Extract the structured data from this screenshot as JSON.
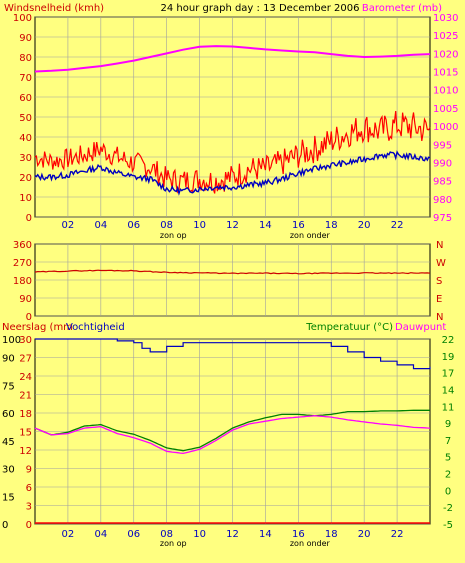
{
  "title": "24 hour graph day : 13 December 2006",
  "colors": {
    "background": "#ffff80",
    "plot": "#ffff80",
    "grid": "#a0a0a0",
    "wind": "#ff0000",
    "barometer": "#ff00ff",
    "winddir": "#cc0000",
    "humidity": "#0000c0",
    "temperature": "#008000",
    "dewpoint": "#ff00ff",
    "rain": "#ff0000",
    "axis_text": "#cc0000",
    "humidity_text": "#0000c0",
    "temp_text": "#008000"
  },
  "labels": {
    "wind_left": "Windsnelheid (kmh)",
    "baro_right": "Barometer (mb)",
    "rain_left": "Neerslag (mm",
    "hum_left": "Vochtigheid",
    "temp_right": "Temperatuur (°C)",
    "dew_right": "Dauwpunt",
    "sunrise": "zon op",
    "sunset": "zon onder"
  },
  "chart_data": [
    {
      "name": "wind-barometer",
      "type": "line",
      "x_ticks": [
        "02",
        "04",
        "06",
        "08",
        "10",
        "12",
        "14",
        "16",
        "18",
        "20",
        "22"
      ],
      "y_left_ticks": [
        "0",
        "10",
        "20",
        "30",
        "40",
        "50",
        "60",
        "70",
        "80",
        "90",
        "100"
      ],
      "y_right_ticks": [
        "975",
        "980",
        "985",
        "990",
        "995",
        "1000",
        "1005",
        "1010",
        "1015",
        "1020",
        "1025",
        "1030"
      ],
      "ylim_left": [
        0,
        100
      ],
      "ylim_right": [
        975,
        1030
      ],
      "series": [
        {
          "key": "gust",
          "hours": [
            0,
            1,
            2,
            3,
            4,
            5,
            6,
            7,
            8,
            9,
            10,
            11,
            12,
            13,
            14,
            15,
            16,
            17,
            18,
            19,
            20,
            21,
            22,
            23,
            24
          ],
          "values": [
            30,
            28,
            29,
            31,
            34,
            30,
            27,
            25,
            19,
            18,
            19,
            18,
            20,
            24,
            24,
            27,
            31,
            34,
            38,
            42,
            45,
            43,
            46,
            45,
            43
          ]
        },
        {
          "key": "wind",
          "hours": [
            0,
            1,
            2,
            3,
            4,
            5,
            6,
            7,
            8,
            9,
            10,
            11,
            12,
            13,
            14,
            15,
            16,
            17,
            18,
            19,
            20,
            21,
            22,
            23,
            24
          ],
          "values": [
            20,
            20,
            21,
            23,
            25,
            22,
            20,
            19,
            14,
            13,
            14,
            15,
            15,
            16,
            17,
            19,
            22,
            24,
            26,
            27,
            29,
            31,
            31,
            30,
            29
          ]
        },
        {
          "key": "barometer",
          "hours": [
            0,
            1,
            2,
            3,
            4,
            5,
            6,
            7,
            8,
            9,
            10,
            11,
            12,
            13,
            14,
            15,
            16,
            17,
            18,
            19,
            20,
            21,
            22,
            23,
            24
          ],
          "values": [
            1015,
            1015.2,
            1015.5,
            1016,
            1016.5,
            1017.2,
            1018,
            1019,
            1020,
            1021,
            1021.8,
            1022,
            1021.9,
            1021.5,
            1021.1,
            1020.8,
            1020.5,
            1020.3,
            1019.8,
            1019.3,
            1019,
            1019.1,
            1019.3,
            1019.6,
            1019.8
          ]
        }
      ]
    },
    {
      "name": "wind-direction",
      "type": "line",
      "x_ticks": [],
      "y_left_ticks": [
        "0",
        "90",
        "180",
        "270",
        "360"
      ],
      "y_right_ticks": [
        "N",
        "E",
        "S",
        "W",
        "N"
      ],
      "ylim": [
        0,
        360
      ],
      "series": [
        {
          "key": "direction",
          "hours": [
            0,
            2,
            4,
            6,
            8,
            10,
            12,
            14,
            16,
            18,
            20,
            22,
            24
          ],
          "values": [
            220,
            225,
            228,
            226,
            218,
            216,
            213,
            214,
            212,
            214,
            215,
            214,
            215
          ]
        }
      ]
    },
    {
      "name": "rain-humidity-temperature",
      "type": "line",
      "x_ticks": [
        "02",
        "04",
        "06",
        "08",
        "10",
        "12",
        "14",
        "16",
        "18",
        "20",
        "22"
      ],
      "y_left_ticks": [
        "0",
        "3",
        "6",
        "9",
        "12",
        "15",
        "18",
        "21",
        "24",
        "27",
        "30"
      ],
      "y_hum_ticks": [
        "0",
        "15",
        "30",
        "45",
        "60",
        "75",
        "90",
        "100"
      ],
      "y_right_ticks": [
        "-5",
        "-2",
        "0",
        "2",
        "5",
        "7",
        "9",
        "11",
        "14",
        "17",
        "19",
        "22"
      ],
      "ylim_left": [
        0,
        30
      ],
      "ylim_right": [
        -5,
        22
      ],
      "series": [
        {
          "key": "humidity",
          "hours": [
            0,
            2,
            4,
            5,
            6,
            6.5,
            7,
            8,
            9,
            10,
            11,
            13,
            15,
            17,
            18,
            19,
            20,
            21,
            22,
            23,
            24
          ],
          "values": [
            100,
            100,
            100,
            99,
            98,
            95,
            93,
            96,
            98,
            98,
            98,
            98,
            98,
            98,
            96,
            93,
            90,
            88,
            86,
            84,
            85
          ]
        },
        {
          "key": "temperature",
          "hours": [
            0,
            1,
            2,
            3,
            4,
            5,
            6,
            7,
            8,
            9,
            10,
            11,
            12,
            13,
            14,
            15,
            16,
            17,
            18,
            19,
            20,
            21,
            22,
            23,
            24
          ],
          "values": [
            9,
            8,
            8.4,
            9.3,
            9.5,
            8.6,
            8.1,
            7.2,
            6.1,
            5.7,
            6.2,
            7.5,
            9,
            9.9,
            10.5,
            11,
            11,
            10.8,
            11,
            11.4,
            11.4,
            11.5,
            11.5,
            11.6,
            11.6
          ]
        },
        {
          "key": "dewpoint",
          "hours": [
            0,
            1,
            2,
            3,
            4,
            5,
            6,
            7,
            8,
            9,
            10,
            11,
            12,
            13,
            14,
            15,
            16,
            17,
            18,
            19,
            20,
            21,
            22,
            23,
            24
          ],
          "values": [
            9,
            8,
            8.2,
            9,
            9.2,
            8.2,
            7.6,
            6.8,
            5.6,
            5.3,
            5.9,
            7.2,
            8.7,
            9.6,
            10,
            10.4,
            10.6,
            10.8,
            10.6,
            10.2,
            9.9,
            9.6,
            9.4,
            9.1,
            9
          ]
        },
        {
          "key": "rain",
          "hours": [
            0,
            24
          ],
          "values": [
            0,
            0
          ]
        }
      ]
    }
  ]
}
